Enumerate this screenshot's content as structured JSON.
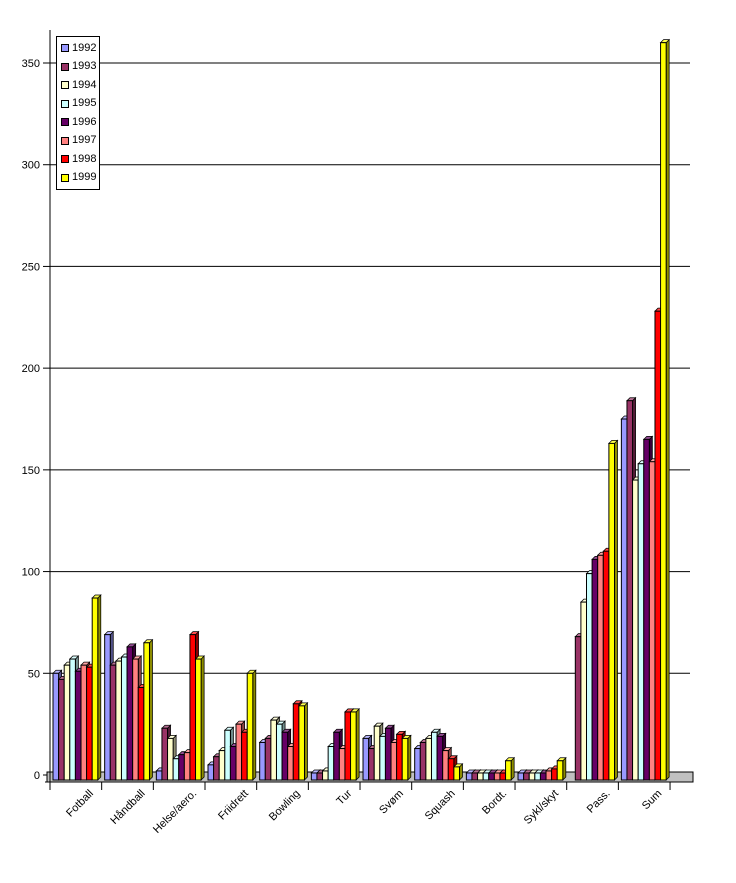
{
  "chart_data": {
    "type": "bar",
    "title": "",
    "xlabel": "",
    "ylabel": "",
    "ylim": [
      0,
      350
    ],
    "ytick_step": 50,
    "yticks": [
      0,
      50,
      100,
      150,
      200,
      250,
      300,
      350
    ],
    "grid": true,
    "legend_position": "top-left",
    "style": "3d-column",
    "categories": [
      "Fotball",
      "Håndball",
      "Helse/aero.",
      "Friidrett",
      "Bowling",
      "Tur",
      "Svøm",
      "Squash",
      "Bordt.",
      "Sykl/skyt",
      "Pass.",
      "Sum"
    ],
    "series": [
      {
        "name": "1992",
        "color": "#9999FF",
        "values": [
          50,
          69,
          2,
          5,
          16,
          1,
          18,
          13,
          1,
          1,
          0,
          175
        ]
      },
      {
        "name": "1993",
        "color": "#993366",
        "values": [
          47,
          54,
          23,
          9,
          18,
          1,
          13,
          16,
          1,
          1,
          68,
          184
        ]
      },
      {
        "name": "1994",
        "color": "#FFFFCC",
        "values": [
          54,
          56,
          18,
          12,
          27,
          2,
          24,
          18,
          1,
          1,
          85,
          145
        ]
      },
      {
        "name": "1995",
        "color": "#CCFFFF",
        "values": [
          57,
          58,
          8,
          22,
          25,
          14,
          19,
          21,
          1,
          1,
          99,
          153
        ]
      },
      {
        "name": "1996",
        "color": "#660066",
        "values": [
          51,
          63,
          10,
          14,
          21,
          21,
          23,
          19,
          1,
          1,
          106,
          165
        ]
      },
      {
        "name": "1997",
        "color": "#FF8080",
        "values": [
          54,
          57,
          11,
          25,
          14,
          13,
          16,
          12,
          1,
          2,
          108,
          154
        ]
      },
      {
        "name": "1998",
        "color": "#FF0000",
        "values": [
          53,
          43,
          69,
          21,
          35,
          31,
          20,
          8,
          1,
          3,
          110,
          228
        ]
      },
      {
        "name": "1999",
        "color": "#FFFF00",
        "values": [
          87,
          65,
          57,
          50,
          34,
          31,
          18,
          4,
          7,
          7,
          163,
          360
        ]
      }
    ]
  },
  "colors": {
    "background": "#FFFFFF",
    "axis": "#000000",
    "gridline": "#000000",
    "floor": "#C0C0C0",
    "text": "#000000",
    "legend_border": "#000000",
    "legend_background": "#FFFFFF"
  }
}
